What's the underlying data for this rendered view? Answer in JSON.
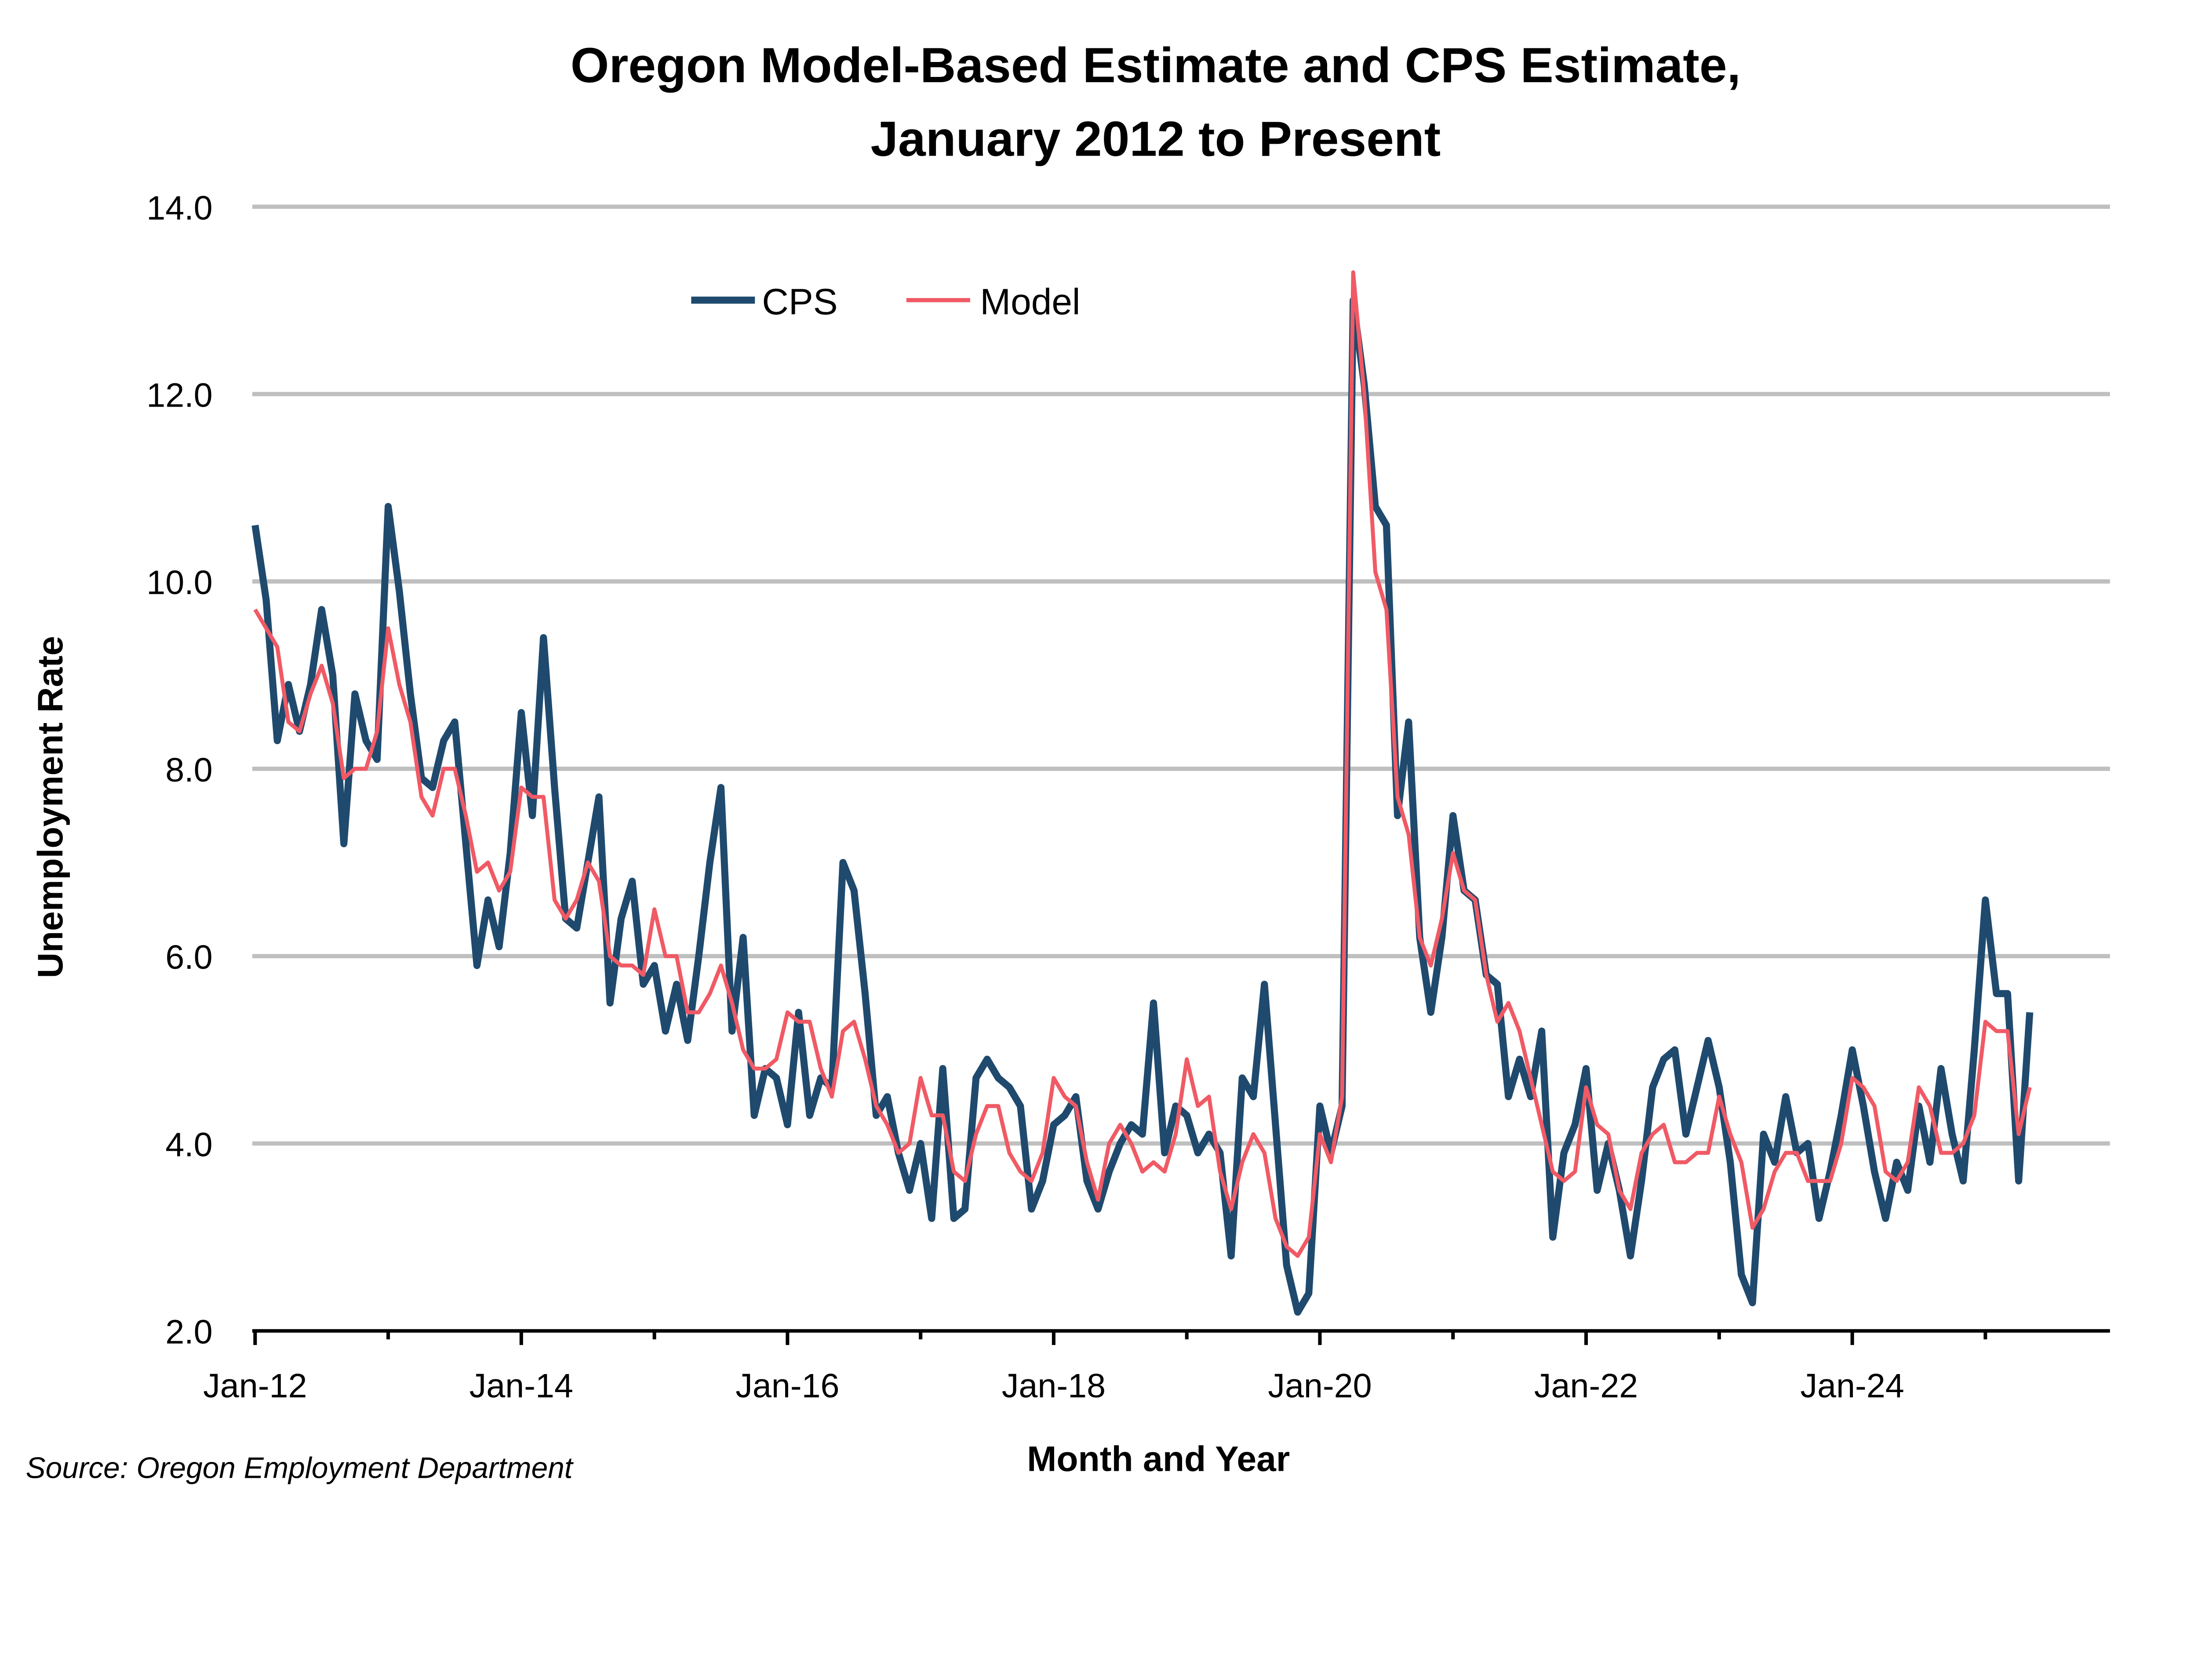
{
  "chart_data": {
    "type": "line",
    "title": [
      "Oregon Model-Based Estimate and CPS Estimate,",
      "January 2012 to Present"
    ],
    "xlabel": "Month and Year",
    "ylabel": "Unemployment Rate",
    "source": "Source: Oregon Employment Department",
    "x_start": "Jan-12",
    "x_frequency": "monthly",
    "x_tick_labels": [
      "Jan-12",
      "Jan-14",
      "Jan-16",
      "Jan-18",
      "Jan-20",
      "Jan-22",
      "Jan-24"
    ],
    "y_tick_labels": [
      "2.0",
      "4.0",
      "6.0",
      "8.0",
      "10.0",
      "12.0",
      "14.0"
    ],
    "ylim": [
      2.0,
      14.0
    ],
    "grid": "horizontal",
    "legend_position": "top-left",
    "series": [
      {
        "name": "CPS",
        "color": "#1f4a6e",
        "values": [
          10.6,
          9.8,
          8.3,
          8.9,
          8.4,
          8.9,
          9.7,
          9.0,
          7.2,
          8.8,
          8.3,
          8.1,
          10.8,
          9.9,
          8.8,
          7.9,
          7.8,
          8.3,
          8.5,
          7.2,
          5.9,
          6.6,
          6.1,
          7.1,
          8.6,
          7.5,
          9.4,
          7.8,
          6.4,
          6.3,
          7.0,
          7.7,
          5.5,
          6.4,
          6.8,
          5.7,
          5.9,
          5.2,
          5.7,
          5.1,
          6.0,
          7.0,
          7.8,
          5.2,
          6.2,
          4.3,
          4.8,
          4.7,
          4.2,
          5.4,
          4.3,
          4.7,
          4.6,
          7.0,
          6.7,
          5.6,
          4.3,
          4.5,
          3.9,
          3.5,
          4.0,
          3.2,
          4.8,
          3.2,
          3.3,
          4.7,
          4.9,
          4.7,
          4.6,
          4.4,
          3.3,
          3.6,
          4.2,
          4.3,
          4.5,
          3.6,
          3.3,
          3.7,
          4.0,
          4.2,
          4.1,
          5.5,
          3.9,
          4.4,
          4.3,
          3.9,
          4.1,
          3.9,
          2.8,
          4.7,
          4.5,
          5.7,
          4.2,
          2.7,
          2.2,
          2.4,
          4.4,
          3.9,
          4.4,
          13.0,
          12.1,
          10.8,
          10.6,
          7.5,
          8.5,
          6.2,
          5.4,
          6.2,
          7.5,
          6.7,
          6.6,
          5.8,
          5.7,
          4.5,
          4.9,
          4.5,
          5.2,
          3.0,
          3.9,
          4.2,
          4.8,
          3.5,
          4.0,
          3.5,
          2.8,
          3.6,
          4.6,
          4.9,
          5.0,
          4.1,
          4.6,
          5.1,
          4.6,
          3.8,
          2.6,
          2.3,
          4.1,
          3.8,
          4.5,
          3.9,
          4.0,
          3.2,
          3.7,
          4.3,
          5.0,
          4.4,
          3.7,
          3.2,
          3.8,
          3.5,
          4.4,
          3.8,
          4.8,
          4.1,
          3.6,
          5.0,
          6.6,
          5.6,
          5.6,
          3.6,
          5.4
        ]
      },
      {
        "name": "Model",
        "color": "#f05a65",
        "values": [
          9.7,
          9.5,
          9.3,
          8.5,
          8.4,
          8.8,
          9.1,
          8.7,
          7.9,
          8.0,
          8.0,
          8.4,
          9.5,
          8.9,
          8.5,
          7.7,
          7.5,
          8.0,
          8.0,
          7.5,
          6.9,
          7.0,
          6.7,
          6.9,
          7.8,
          7.7,
          7.7,
          6.6,
          6.4,
          6.6,
          7.0,
          6.8,
          6.0,
          5.9,
          5.9,
          5.8,
          6.5,
          6.0,
          6.0,
          5.4,
          5.4,
          5.6,
          5.9,
          5.5,
          5.0,
          4.8,
          4.8,
          4.9,
          5.4,
          5.3,
          5.3,
          4.8,
          4.5,
          5.2,
          5.3,
          4.9,
          4.4,
          4.2,
          3.9,
          4.0,
          4.7,
          4.3,
          4.3,
          3.7,
          3.6,
          4.1,
          4.4,
          4.4,
          3.9,
          3.7,
          3.6,
          3.9,
          4.7,
          4.5,
          4.4,
          3.8,
          3.4,
          4.0,
          4.2,
          4.0,
          3.7,
          3.8,
          3.7,
          4.1,
          4.9,
          4.4,
          4.5,
          3.7,
          3.3,
          3.8,
          4.1,
          3.9,
          3.2,
          2.9,
          2.8,
          3.0,
          4.1,
          3.8,
          4.5,
          13.3,
          12.0,
          10.1,
          9.7,
          7.7,
          7.3,
          6.2,
          5.9,
          6.4,
          7.1,
          6.7,
          6.6,
          5.8,
          5.3,
          5.5,
          5.2,
          4.7,
          4.2,
          3.7,
          3.6,
          3.7,
          4.6,
          4.2,
          4.1,
          3.5,
          3.3,
          3.9,
          4.1,
          4.2,
          3.8,
          3.8,
          3.9,
          3.9,
          4.5,
          4.1,
          3.8,
          3.1,
          3.3,
          3.7,
          3.9,
          3.9,
          3.6,
          3.6,
          3.6,
          4.0,
          4.7,
          4.6,
          4.4,
          3.7,
          3.6,
          3.8,
          4.6,
          4.4,
          3.9,
          3.9,
          4.0,
          4.3,
          5.3,
          5.2,
          5.2,
          4.1,
          4.6
        ]
      }
    ],
    "gridline_color": "#bfbfbf"
  }
}
